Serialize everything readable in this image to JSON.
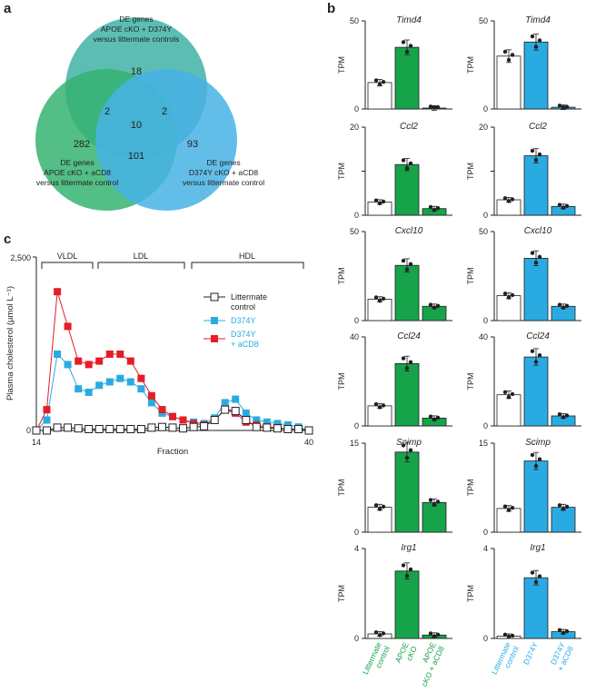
{
  "panel_labels": {
    "a": "a",
    "b": "b",
    "c": "c"
  },
  "colors": {
    "green": "#16a34a",
    "blue": "#29abe2",
    "teal": "#3dbfb0",
    "red": "#e41e26",
    "black": "#231f20",
    "venn_top": "#3fb3a4",
    "venn_left": "#35b371",
    "venn_right": "#47b3e5"
  },
  "venn": {
    "top_label": [
      "DE genes",
      "APOE cKO + D374Y",
      "versus littermate controls"
    ],
    "left_label": [
      "DE genes",
      "APOE cKO + aCD8",
      "versus littermate control"
    ],
    "right_label": [
      "DE genes",
      "D374Y cKO + aCD8",
      "versus littermate control"
    ],
    "counts": {
      "top_only": "18",
      "left_only": "282",
      "right_only": "93",
      "top_left": "2",
      "top_right": "2",
      "left_right": "101",
      "all": "10"
    }
  },
  "chart_data": [
    {
      "type": "line",
      "panel": "c",
      "xlabel": "Fraction",
      "ylabel": "Plasma cholesterol (µmol L⁻¹)",
      "ylim": [
        0,
        2500
      ],
      "xlim": [
        14,
        40
      ],
      "y_ticks": [
        "0",
        "2,500"
      ],
      "x_ticks": [
        "14",
        "40"
      ],
      "regions": [
        "VLDL",
        "LDL",
        "HDL"
      ],
      "x": [
        14,
        15,
        16,
        17,
        18,
        19,
        20,
        21,
        22,
        23,
        24,
        25,
        26,
        27,
        28,
        29,
        30,
        31,
        32,
        33,
        34,
        35,
        36,
        37,
        38,
        39,
        40
      ],
      "series": [
        {
          "name": "Littermate control",
          "color": "#231f20",
          "marker": "open-square",
          "values": [
            0,
            0,
            40,
            40,
            30,
            20,
            20,
            20,
            20,
            20,
            20,
            40,
            50,
            40,
            30,
            50,
            60,
            150,
            300,
            280,
            150,
            50,
            40,
            30,
            20,
            20,
            0
          ]
        },
        {
          "name": "D374Y",
          "color": "#29abe2",
          "marker": "square",
          "values": [
            0,
            150,
            1100,
            950,
            600,
            550,
            650,
            700,
            750,
            700,
            600,
            400,
            250,
            200,
            150,
            120,
            100,
            180,
            400,
            450,
            250,
            150,
            120,
            100,
            80,
            50,
            0
          ]
        },
        {
          "name": "D374Y + aCD8",
          "color": "#e41e26",
          "marker": "square",
          "values": [
            0,
            300,
            2000,
            1500,
            1000,
            950,
            1000,
            1100,
            1100,
            1000,
            750,
            500,
            300,
            200,
            150,
            100,
            80,
            150,
            300,
            250,
            120,
            80,
            50,
            40,
            20,
            20,
            0
          ]
        }
      ],
      "legend": [
        [
          "Littermate",
          "control"
        ],
        [
          "D374Y"
        ],
        [
          "D374Y",
          "+ aCD8"
        ]
      ]
    },
    {
      "type": "bar",
      "panel": "b",
      "ylabel": "TPM",
      "left_categories": [
        [
          "Littermate",
          "control"
        ],
        [
          "APOE",
          "cKO"
        ],
        [
          "APOE",
          "cKO + aCD8"
        ]
      ],
      "right_categories": [
        [
          "Littermate",
          "control"
        ],
        [
          "D374Y"
        ],
        [
          "D374Y",
          "+ aCD8"
        ]
      ],
      "genes": [
        {
          "name": "Timd4",
          "ymax": 50,
          "ymax_label": "50",
          "ymid_label": "",
          "left": [
            15,
            35,
            0.5
          ],
          "right": [
            30,
            38,
            1
          ]
        },
        {
          "name": "Ccl2",
          "ymax": 20,
          "ymax_label": "20",
          "ymid_label": "10",
          "left": [
            3,
            11.5,
            1.5
          ],
          "right": [
            3.5,
            13.5,
            2
          ]
        },
        {
          "name": "Cxcl10",
          "ymax": 50,
          "ymax_label": "50",
          "ymid_label": "",
          "left": [
            12,
            31,
            8
          ],
          "right": [
            14,
            35,
            8
          ]
        },
        {
          "name": "Ccl24",
          "ymax": 40,
          "ymax_label": "40",
          "ymid_label": "",
          "left": [
            9,
            28,
            3.5
          ],
          "right": [
            14,
            31,
            4.5
          ]
        },
        {
          "name": "Scimp",
          "ymax": 15,
          "ymax_label": "15",
          "ymid_label": "",
          "left": [
            4.2,
            13.5,
            5
          ],
          "right": [
            4,
            12,
            4.2
          ]
        },
        {
          "name": "Irg1",
          "ymax": 4,
          "ymax_label": "4",
          "ymid_label": "",
          "left": [
            0.2,
            3,
            0.15
          ],
          "right": [
            0.1,
            2.7,
            0.3
          ]
        }
      ]
    }
  ]
}
